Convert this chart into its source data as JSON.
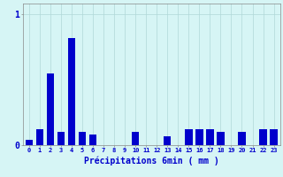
{
  "hours": [
    0,
    1,
    2,
    3,
    4,
    5,
    6,
    7,
    8,
    9,
    10,
    11,
    12,
    13,
    14,
    15,
    16,
    17,
    18,
    19,
    20,
    21,
    22,
    23
  ],
  "values": [
    0.04,
    0.12,
    0.55,
    0.1,
    0.82,
    0.1,
    0.08,
    0.0,
    0.0,
    0.0,
    0.1,
    0.0,
    0.0,
    0.07,
    0.0,
    0.12,
    0.12,
    0.12,
    0.1,
    0.0,
    0.1,
    0.0,
    0.12,
    0.12
  ],
  "bar_color": "#0000cc",
  "background_color": "#d6f5f5",
  "grid_color": "#b0d8d8",
  "axis_color": "#888888",
  "text_color": "#0000cc",
  "xlabel": "Précipitations 6min ( mm )",
  "ylim": [
    0,
    1.08
  ],
  "yticks": [
    0,
    1
  ],
  "ytick_labels": [
    "0",
    "1"
  ],
  "bar_width": 0.7
}
